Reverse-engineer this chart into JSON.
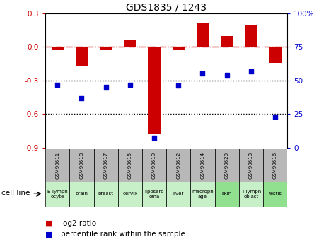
{
  "title": "GDS1835 / 1243",
  "gsm_labels": [
    "GSM90611",
    "GSM90618",
    "GSM90617",
    "GSM90615",
    "GSM90619",
    "GSM90612",
    "GSM90614",
    "GSM90620",
    "GSM90613",
    "GSM90616"
  ],
  "cell_labels": [
    "B lymph\nocyte",
    "brain",
    "breast",
    "cervix",
    "liposarc\noma",
    "liver",
    "macroph\nage",
    "skin",
    "T lymph\noblast",
    "testis"
  ],
  "cell_bg_colors": [
    "#c8f0c8",
    "#c8f0c8",
    "#c8f0c8",
    "#c8f0c8",
    "#c8f0c8",
    "#c8f0c8",
    "#c8f0c8",
    "#90e090",
    "#c8f0c8",
    "#90e090"
  ],
  "log2_ratio": [
    -0.03,
    -0.17,
    -0.02,
    0.06,
    -0.78,
    -0.02,
    0.22,
    0.1,
    0.2,
    -0.14
  ],
  "percentile_rank": [
    47,
    37,
    45,
    47,
    7,
    46,
    55,
    54,
    57,
    23
  ],
  "ylim_left": [
    -0.9,
    0.3
  ],
  "ylim_right": [
    0,
    100
  ],
  "yticks_left": [
    -0.9,
    -0.6,
    -0.3,
    0.0,
    0.3
  ],
  "yticks_right": [
    0,
    25,
    50,
    75,
    100
  ],
  "bar_color": "#cc0000",
  "dot_color": "#0000cc",
  "refline_color": "#cc0000",
  "dotted_color": "#000000",
  "gsm_bg": "#b8b8b8",
  "bar_width": 0.5,
  "legend_labels": [
    "log2 ratio",
    "percentile rank within the sample"
  ]
}
